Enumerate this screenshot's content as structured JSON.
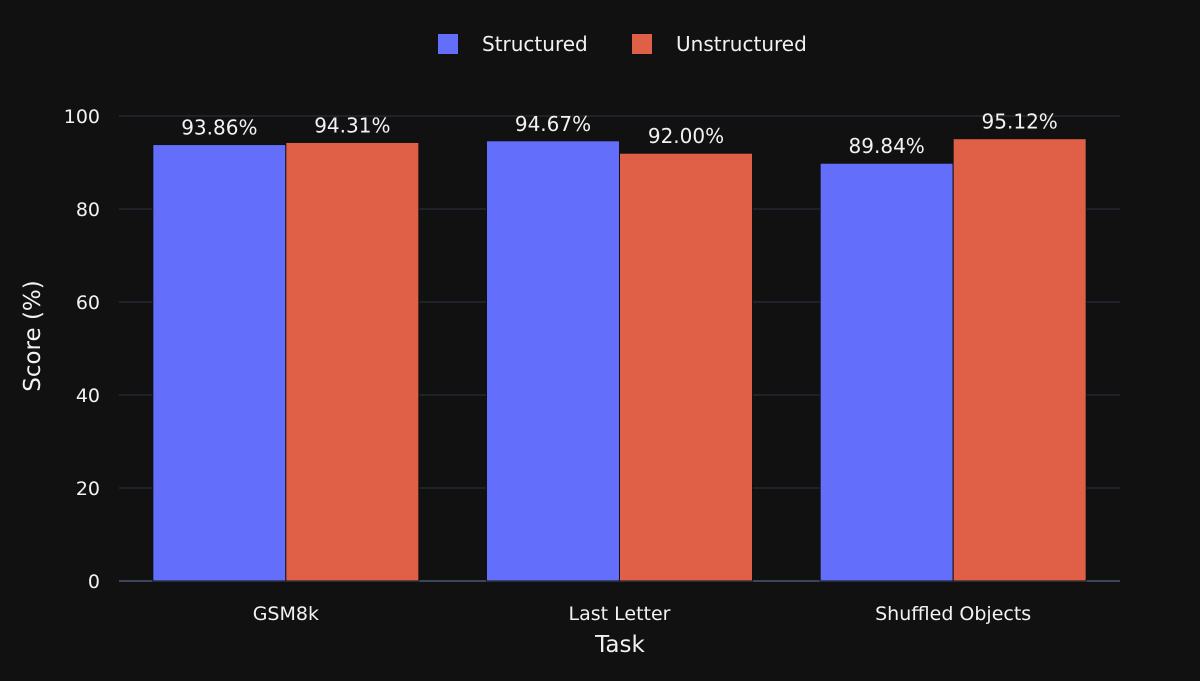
{
  "chart_data": {
    "type": "bar",
    "title": "",
    "xlabel": "Task",
    "ylabel": "Score (%)",
    "categories": [
      "GSM8k",
      "Last Letter",
      "Shuffled Objects"
    ],
    "series": [
      {
        "name": "Structured",
        "color": "#636efa",
        "values": [
          93.86,
          94.67,
          89.84
        ],
        "labels": [
          "93.86%",
          "94.67%",
          "89.84%"
        ]
      },
      {
        "name": "Unstructured",
        "color": "#e06047",
        "values": [
          94.31,
          92.0,
          95.12
        ],
        "labels": [
          "94.31%",
          "92.00%",
          "95.12%"
        ]
      }
    ],
    "ylim": [
      0,
      100
    ],
    "yticks": [
      0,
      20,
      40,
      60,
      80,
      100
    ],
    "grid": true,
    "legend_position": "top-center",
    "background": "#111111",
    "grid_color": "#2c3544"
  }
}
